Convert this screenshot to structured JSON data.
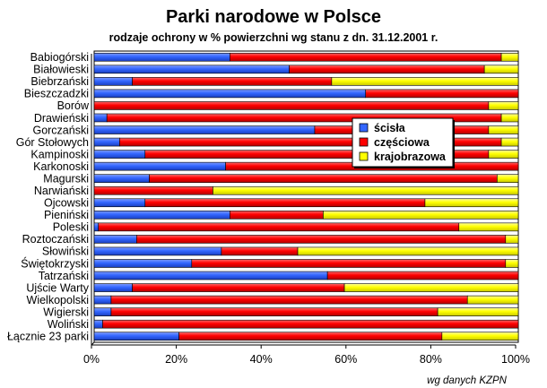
{
  "chart_data": {
    "type": "bar",
    "orientation": "horizontal",
    "stacked": true,
    "title": "Parki narodowe w Polsce",
    "subtitle": "rodzaje ochrony w % powierzchni wg stanu z dn. 31.12.2001 r.",
    "source": "wg danych KZPN",
    "xlim": [
      0,
      100
    ],
    "x_ticks": [
      "0%",
      "20%",
      "40%",
      "60%",
      "80%",
      "100%"
    ],
    "grid": false,
    "legend_position": "right-upper",
    "categories": [
      "Babiogórski",
      "Białowieski",
      "Biebrzański",
      "Bieszczadzki",
      "Borów",
      "Drawieński",
      "Gorczański",
      "Gór Stołowych",
      "Kampinoski",
      "Karkonoski",
      "Magurski",
      "Narwiański",
      "Ojcowski",
      "Pieniński",
      "Poleski",
      "Roztoczański",
      "Słowiński",
      "Świętokrzyski",
      "Tatrzański",
      "Ujście Warty",
      "Wielkopolski",
      "Wigierski",
      "Woliński",
      "Łącznie 23 parki"
    ],
    "series": [
      {
        "name": "ścisła",
        "color": "#3366ff",
        "values": [
          32,
          46,
          9,
          64,
          0,
          3,
          52,
          6,
          12,
          31,
          13,
          0,
          12,
          32,
          1,
          10,
          30,
          23,
          55,
          9,
          4,
          4,
          2,
          20
        ]
      },
      {
        "name": "częściowa",
        "color": "#ff0000",
        "values": [
          64,
          46,
          47,
          36,
          93,
          93,
          41,
          90,
          81,
          69,
          82,
          28,
          66,
          22,
          85,
          87,
          18,
          74,
          45,
          50,
          84,
          77,
          98,
          62
        ]
      },
      {
        "name": "krajobrazowa",
        "color": "#ffff00",
        "values": [
          4,
          8,
          44,
          0,
          7,
          4,
          7,
          4,
          7,
          0,
          5,
          72,
          22,
          46,
          14,
          3,
          52,
          3,
          0,
          41,
          12,
          19,
          0,
          18
        ]
      }
    ]
  }
}
